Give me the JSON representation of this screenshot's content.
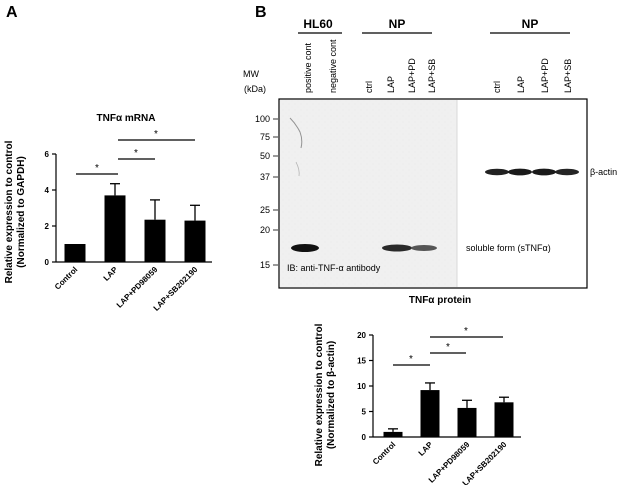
{
  "panels": {
    "a_letter": "A",
    "b_letter": "B"
  },
  "blot": {
    "group_hl60": "HL60",
    "group_np1": "NP",
    "group_np2": "NP",
    "lanes_left": [
      "positive cont",
      "negative cont",
      "ctrl",
      "LAP",
      "LAP+PD",
      "LAP+SB"
    ],
    "lanes_right": [
      "ctrl",
      "LAP",
      "LAP+PD",
      "LAP+SB"
    ],
    "mw_label_1": "MW",
    "mw_label_2": "(kDa)",
    "mw_markers": [
      "100",
      "75",
      "50",
      "37",
      "25",
      "20",
      "15"
    ],
    "beta_actin_label": "β-actin",
    "soluble_label": "soluble form (sTNFα)",
    "antibody_label": "IB: anti-TNF-α antibody",
    "caption": "TNFα protein"
  },
  "chart_data": [
    {
      "type": "bar",
      "title": "TNFα mRNA",
      "ylabel_line1": "Relative expression to control",
      "ylabel_line2": "(Normalized to GAPDH)",
      "categories": [
        "Control",
        "LAP",
        "LAP+PD98059",
        "LAP+SB202190"
      ],
      "values": [
        1.0,
        3.7,
        2.35,
        2.3
      ],
      "errors": [
        0,
        0.65,
        1.1,
        0.85
      ],
      "ylim": [
        0,
        6
      ],
      "yticks": [
        "0",
        "2",
        "4",
        "6"
      ],
      "significance": [
        "*",
        "*",
        "*"
      ]
    },
    {
      "type": "bar",
      "title": "",
      "ylabel_line1": "Relative expression to control",
      "ylabel_line2": "(Normalized to β-actin)",
      "categories": [
        "Control",
        "LAP",
        "LAP+PD98059",
        "LAP+SB202190"
      ],
      "values": [
        1.0,
        9.2,
        5.7,
        6.8
      ],
      "errors": [
        0.6,
        1.4,
        1.5,
        1.0
      ],
      "ylim": [
        0,
        20
      ],
      "yticks": [
        "0",
        "5",
        "10",
        "15",
        "20"
      ],
      "significance": [
        "*",
        "*",
        "*"
      ]
    }
  ]
}
